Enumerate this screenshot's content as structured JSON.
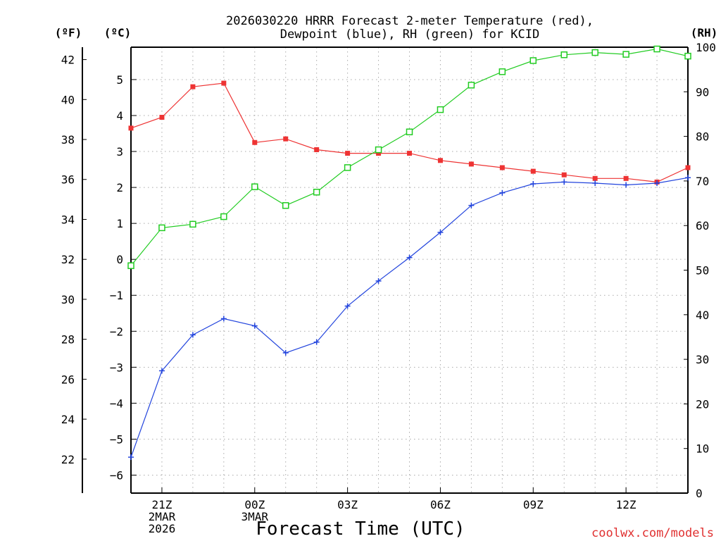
{
  "chart_data": {
    "type": "line",
    "title_lines": [
      "2026030220 HRRR Forecast 2-meter Temperature (red),",
      "Dewpoint (blue), RH (green) for KCID"
    ],
    "xlabel": "Forecast Time (UTC)",
    "credit": "coolwx.com/models",
    "units": {
      "fahrenheit": "(ºF)",
      "celsius": "(ºC)",
      "rh": "(RH)"
    },
    "x_hours": [
      20,
      21,
      22,
      23,
      24,
      25,
      26,
      27,
      28,
      29,
      30,
      31,
      32,
      33,
      34,
      35,
      36,
      37,
      38
    ],
    "xlim": [
      20,
      38
    ],
    "x_ticks": [
      {
        "hour": 21,
        "lines": [
          "21Z",
          "2MAR",
          "2026"
        ]
      },
      {
        "hour": 24,
        "lines": [
          "00Z",
          "3MAR"
        ]
      },
      {
        "hour": 27,
        "lines": [
          "03Z"
        ]
      },
      {
        "hour": 30,
        "lines": [
          "06Z"
        ]
      },
      {
        "hour": 33,
        "lines": [
          "09Z"
        ]
      },
      {
        "hour": 36,
        "lines": [
          "12Z"
        ]
      }
    ],
    "celsius_axis": {
      "ylim": [
        -6.5,
        5.9
      ],
      "ticks": [
        -6,
        -5,
        -4,
        -3,
        -2,
        -1,
        0,
        1,
        2,
        3,
        4,
        5
      ],
      "tick_labels": [
        "−6",
        "−5",
        "−4",
        "−3",
        "−2",
        "−1",
        "0",
        "1",
        "2",
        "3",
        "4",
        "5"
      ]
    },
    "fahrenheit_axis": {
      "ticks": [
        22,
        24,
        26,
        28,
        30,
        32,
        34,
        36,
        38,
        40,
        42
      ],
      "tick_labels": [
        "22",
        "24",
        "26",
        "28",
        "30",
        "32",
        "34",
        "36",
        "38",
        "40",
        "42"
      ]
    },
    "rh_axis": {
      "ylim": [
        0,
        100
      ],
      "ticks": [
        0,
        10,
        20,
        30,
        40,
        50,
        60,
        70,
        80,
        90,
        100
      ],
      "tick_labels": [
        "0",
        "10",
        "20",
        "30",
        "40",
        "50",
        "60",
        "70",
        "80",
        "90",
        "100"
      ]
    },
    "series": [
      {
        "name": "Temperature",
        "unit": "C",
        "color": "#ee3333",
        "marker": "filled-square",
        "values": [
          3.65,
          3.95,
          4.8,
          4.9,
          3.25,
          3.35,
          3.05,
          2.95,
          2.95,
          2.95,
          2.75,
          2.65,
          2.55,
          2.45,
          2.35,
          2.25,
          2.25,
          2.15,
          2.55
        ]
      },
      {
        "name": "Dewpoint",
        "unit": "C",
        "color": "#2244dd",
        "marker": "plus",
        "values": [
          -5.5,
          -3.1,
          -2.1,
          -1.65,
          -1.85,
          -2.6,
          -2.3,
          -1.3,
          -0.6,
          0.05,
          0.75,
          1.5,
          1.85,
          2.1,
          2.15,
          2.12,
          2.07,
          2.12,
          2.27
        ]
      },
      {
        "name": "RH",
        "unit": "%",
        "color": "#22cc22",
        "marker": "open-square",
        "values": [
          51,
          59.5,
          60.3,
          62,
          68.7,
          64.5,
          67.5,
          73,
          77,
          81,
          86,
          91.5,
          94.5,
          97,
          98.3,
          98.8,
          98.4,
          99.6,
          98
        ]
      }
    ]
  }
}
